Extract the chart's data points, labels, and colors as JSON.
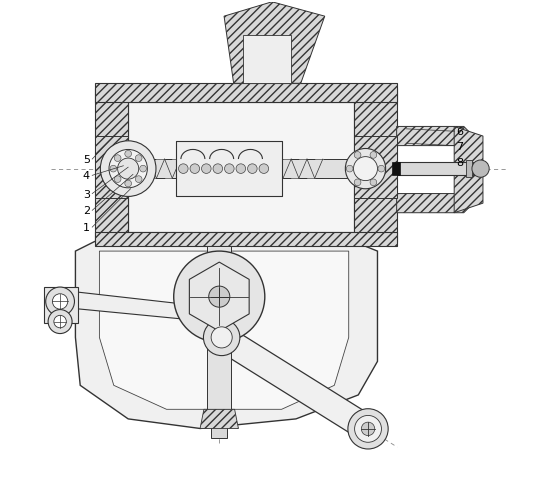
{
  "title": "",
  "bg_color": "#ffffff",
  "line_color": "#333333",
  "hatch_color": "#555555",
  "label_color": "#000000",
  "centerline_color": "#888888",
  "fig_width": 5.44,
  "fig_height": 4.85,
  "dpi": 100
}
